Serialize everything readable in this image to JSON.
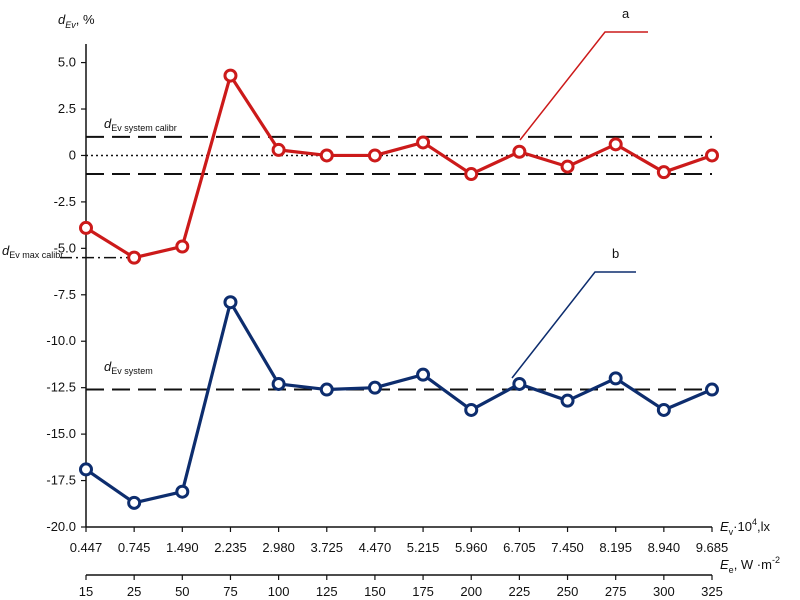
{
  "chart_data": {
    "type": "line",
    "y_axis": {
      "ylim": [
        -20,
        6
      ],
      "ticks": [
        "5.0",
        "2.5",
        "0",
        "-2.5",
        "-5.0",
        "-7.5",
        "-10.0",
        "-12.5",
        "-15.0",
        "-17.5",
        "-20.0"
      ],
      "label_main": "d",
      "label_sub": "Ev",
      "label_unit": ", %"
    },
    "x_axis_top": {
      "tick_labels": [
        "0.447",
        "0.745",
        "1.490",
        "2.235",
        "2.980",
        "3.725",
        "4.470",
        "5.215",
        "5.960",
        "6.705",
        "7.450",
        "8.195",
        "8.940",
        "9.685"
      ],
      "label_main": "E",
      "label_sub": "v",
      "label_mid": "·10",
      "label_sup": "4",
      "label_unit": ",lx"
    },
    "x_axis_bottom": {
      "tick_labels": [
        "15",
        "25",
        "50",
        "75",
        "100",
        "125",
        "150",
        "175",
        "200",
        "225",
        "250",
        "275",
        "300",
        "325"
      ],
      "label_main": "E",
      "label_sub": "e",
      "label_unit": ", W ·m",
      "label_sup": "-2"
    },
    "series": [
      {
        "name": "a",
        "color": "#cc1a1a",
        "x": [
          "15",
          "25",
          "50",
          "75",
          "100",
          "125",
          "150",
          "175",
          "200",
          "225",
          "250",
          "275",
          "300",
          "325"
        ],
        "values": [
          -3.9,
          -5.5,
          -4.9,
          4.3,
          0.3,
          0.0,
          0.0,
          0.7,
          -1.0,
          0.2,
          -0.6,
          0.6,
          -0.9,
          0.0
        ]
      },
      {
        "name": "b",
        "color": "#0d2d6e",
        "x": [
          "15",
          "25",
          "50",
          "75",
          "100",
          "125",
          "150",
          "175",
          "200",
          "225",
          "250",
          "275",
          "300",
          "325"
        ],
        "values": [
          -16.9,
          -18.7,
          -18.1,
          -7.9,
          -12.3,
          -12.6,
          -12.5,
          -11.8,
          -13.7,
          -12.3,
          -13.2,
          -12.0,
          -13.7,
          -12.6
        ]
      }
    ],
    "reference_lines": [
      {
        "value": 1.0,
        "style": "dashed"
      },
      {
        "value": -1.0,
        "style": "dashed"
      },
      {
        "value": 0.0,
        "style": "dotted"
      },
      {
        "value": -12.6,
        "style": "dashed"
      },
      {
        "value": -5.5,
        "style": "dash-dot"
      }
    ],
    "annotations": {
      "system_calibr": {
        "main": "d",
        "sub": "Ev system calibr"
      },
      "max_calibr": {
        "main": "d",
        "sub": "Ev max calibr"
      },
      "system": {
        "main": "d",
        "sub": "Ev system"
      }
    },
    "grid": false
  }
}
